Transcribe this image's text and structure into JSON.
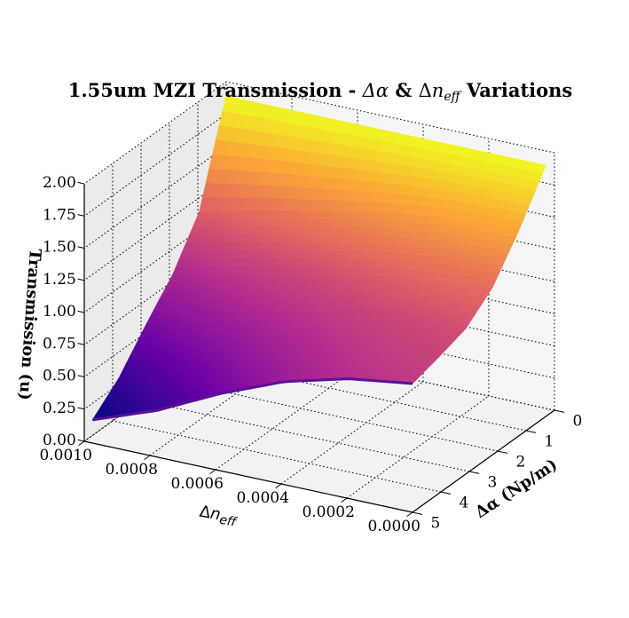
{
  "chart_data": {
    "type": "surface",
    "title": "1.55um MZI Transmission - Δα & Δn_eff Variations",
    "title_parts": {
      "prefix": "1.55um MZI Transmission - ",
      "alpha": "Δα",
      "amp": " & ",
      "delta": "Δ",
      "n": "n",
      "sub": "eff",
      "suffix": " Variations"
    },
    "xlabel": {
      "delta": "Δ",
      "n": "n",
      "sub": "eff"
    },
    "ylabel": "Δα (Np/m)",
    "zlabel": "Transmission (u)",
    "xlim": [
      0,
      0.001
    ],
    "ylim": [
      0,
      5
    ],
    "zlim": [
      0,
      2.0
    ],
    "xticks": [
      "0.0000",
      "0.0002",
      "0.0004",
      "0.0006",
      "0.0008",
      "0.0010"
    ],
    "yticks": [
      "0",
      "1",
      "2",
      "3",
      "4",
      "5"
    ],
    "zticks": [
      "0.00",
      "0.25",
      "0.50",
      "0.75",
      "1.00",
      "1.25",
      "1.50",
      "1.75",
      "2.00"
    ],
    "grid": true,
    "colormap": "plasma",
    "colormap_colors": [
      "#0d0887",
      "#6a00a8",
      "#b12a90",
      "#e16462",
      "#fca636",
      "#f0f921"
    ],
    "surface": {
      "delta_alpha": [
        0,
        1,
        2,
        3,
        4,
        5
      ],
      "transmission_vs_delta_neff": [
        [
          1.95,
          1.95,
          1.95,
          1.95,
          1.95,
          1.95
        ],
        [
          1.6,
          1.58,
          1.52,
          1.42,
          1.32,
          1.2
        ],
        [
          1.3,
          1.26,
          1.18,
          1.08,
          0.98,
          0.86
        ],
        [
          1.13,
          1.08,
          1.0,
          0.9,
          0.78,
          0.62
        ],
        [
          1.06,
          1.0,
          0.9,
          0.76,
          0.56,
          0.36
        ],
        [
          1.0,
          0.93,
          0.8,
          0.6,
          0.36,
          0.18
        ]
      ]
    }
  }
}
